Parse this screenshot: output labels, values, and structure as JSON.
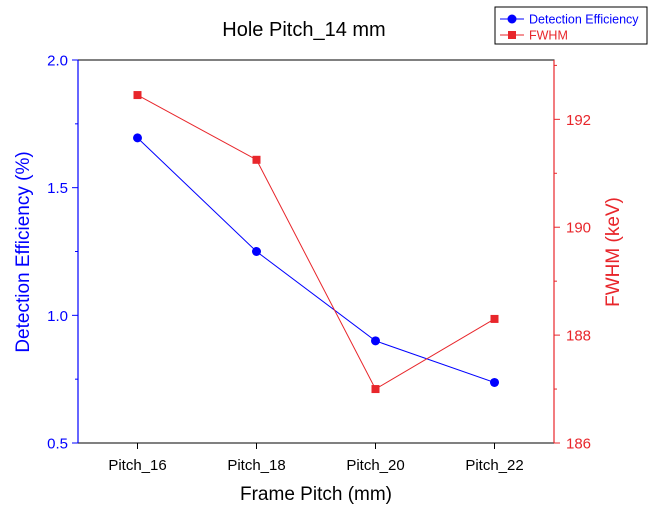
{
  "chart_data": {
    "type": "line",
    "title": "Hole Pitch_14 mm",
    "xlabel": "Frame Pitch (mm)",
    "categories": [
      "Pitch_16",
      "Pitch_18",
      "Pitch_20",
      "Pitch_22"
    ],
    "y_left": {
      "label": "Detection Efficiency (%)",
      "lim": [
        0.5,
        2.0
      ],
      "ticks": [
        "0.5",
        "1.0",
        "1.5",
        "2.0"
      ],
      "color": "#0000ff"
    },
    "y_right": {
      "label": "FWHM (keV)",
      "lim": [
        186.0,
        193.1
      ],
      "ticks": [
        "186",
        "188",
        "190",
        "192"
      ],
      "color": "#e8262b"
    },
    "series": [
      {
        "name": "Detection Efficiency",
        "axis": "left",
        "marker": "circle",
        "color": "#0000ff",
        "values": [
          1.695,
          1.25,
          0.9,
          0.737
        ]
      },
      {
        "name": "FWHM",
        "axis": "right",
        "marker": "square",
        "color": "#e8262b",
        "values": [
          192.45,
          191.25,
          187.0,
          188.3
        ]
      }
    ],
    "legend_position": "top-right",
    "grid": false
  }
}
